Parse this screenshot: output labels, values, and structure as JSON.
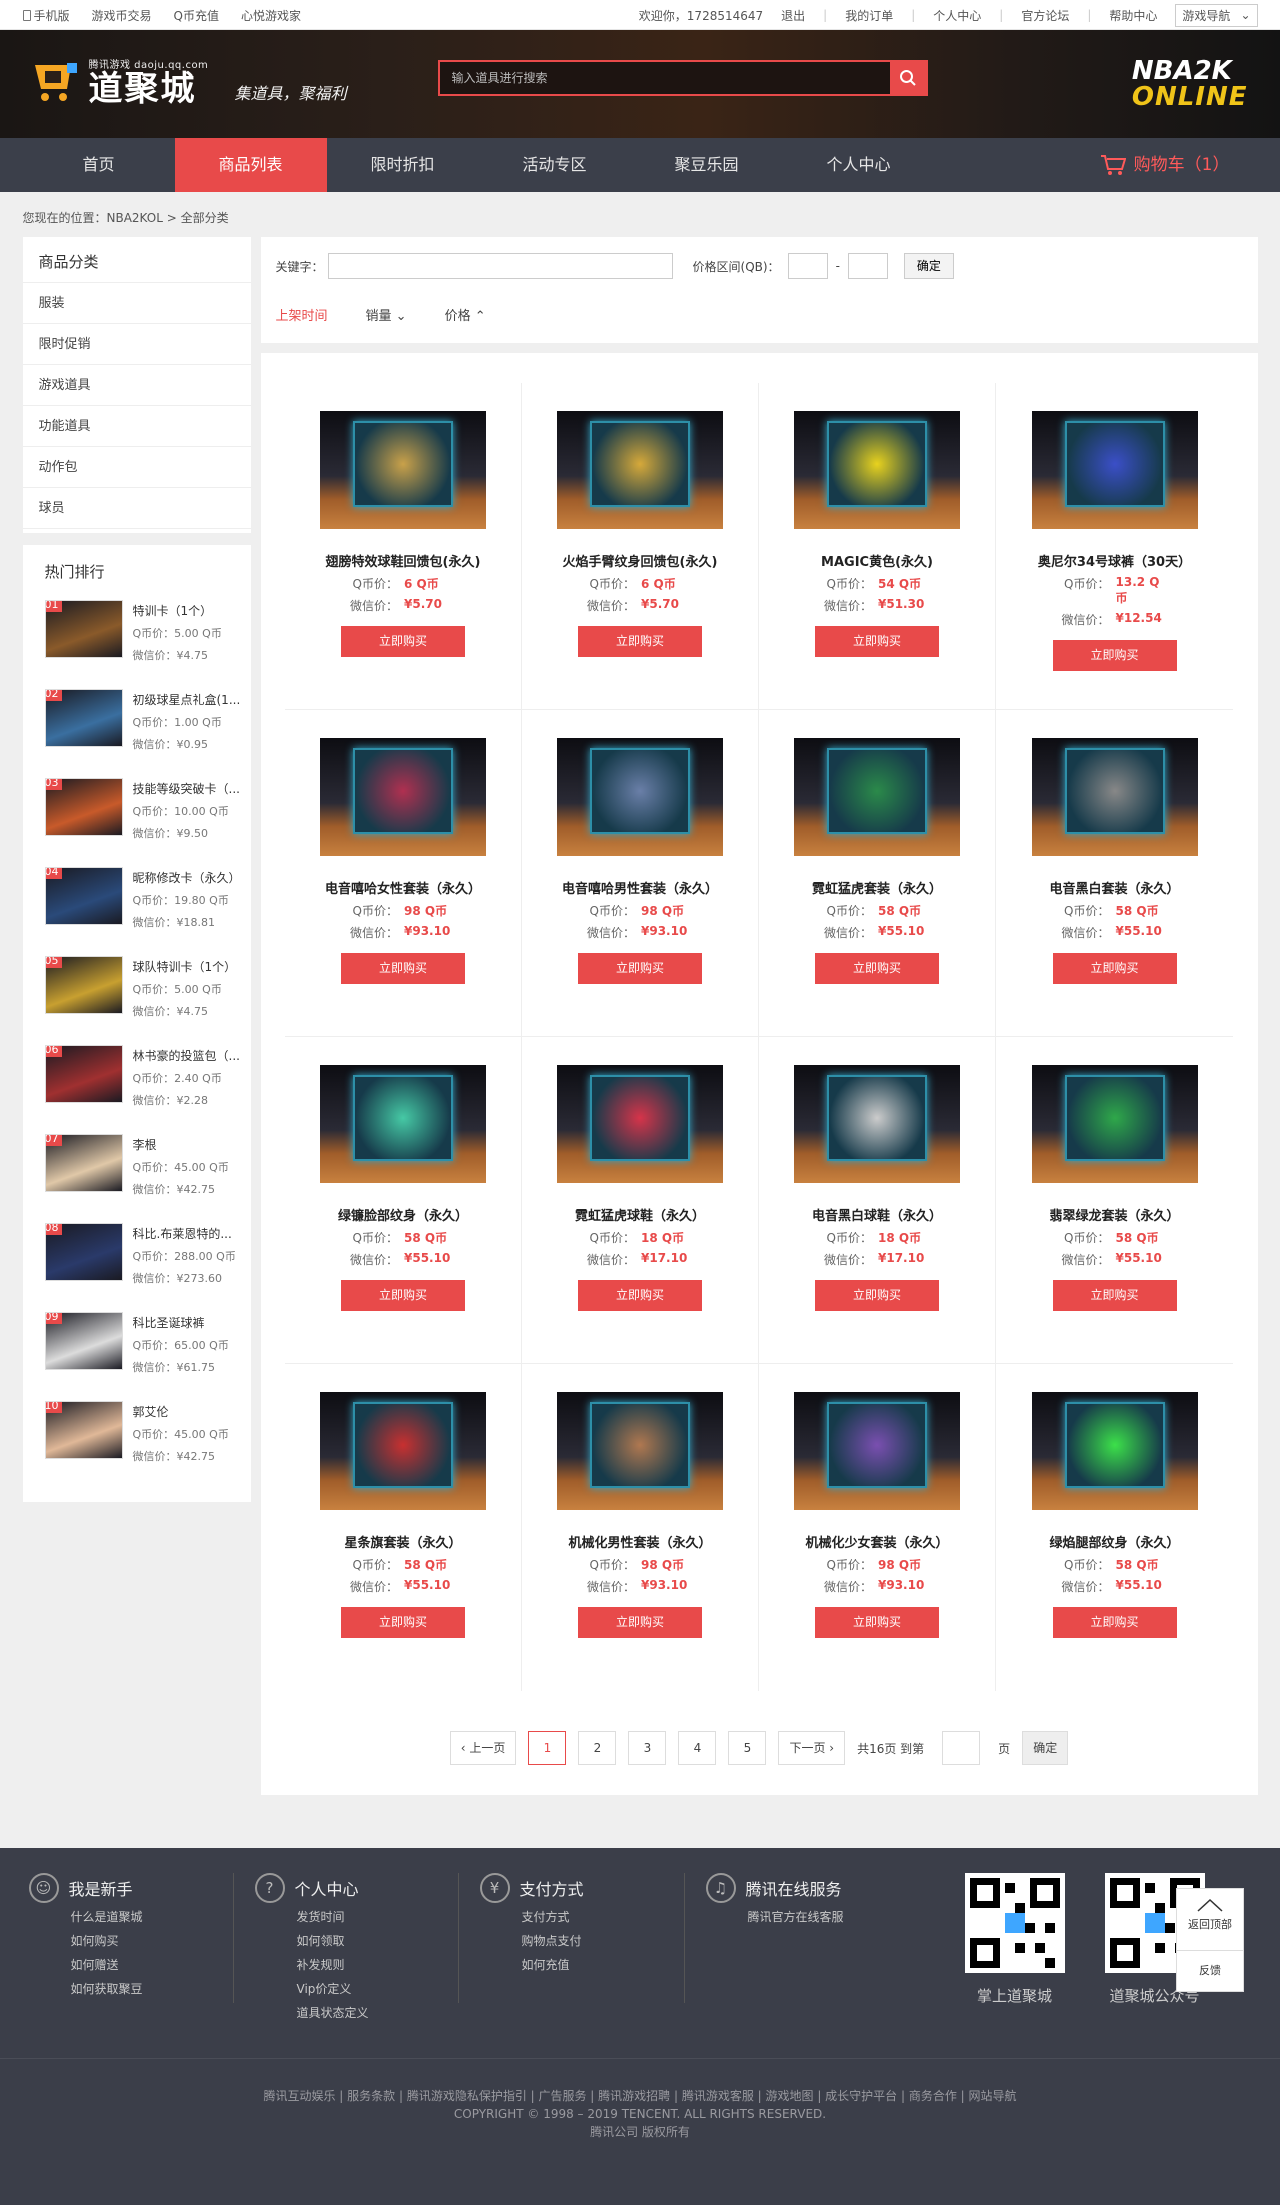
{
  "top": {
    "mobile": "手机版",
    "links": [
      "游戏币交易",
      "Q币充值",
      "心悦游戏家"
    ],
    "welcome": "欢迎你，1728514647",
    "logout": "退出",
    "orders": "我的订单",
    "personal": "个人中心",
    "forum": "官方论坛",
    "help": "帮助中心",
    "game_nav": "游戏导航"
  },
  "header": {
    "logo_sub": "腾讯游戏 daoju.qq.com",
    "logo_main": "道聚城",
    "slogan": "集道具，聚福利",
    "search_placeholder": "输入道具进行搜索",
    "game_logo_top": "NBA2K",
    "game_logo_bottom": "ONLINE"
  },
  "nav": {
    "items": [
      "首页",
      "商品列表",
      "限时折扣",
      "活动专区",
      "聚豆乐园",
      "个人中心"
    ],
    "cart": "购物车（1）"
  },
  "breadcrumb": "您现在的位置：NBA2KOL > 全部分类",
  "categories": {
    "title": "商品分类",
    "items": [
      "服装",
      "限时促销",
      "游戏道具",
      "功能道具",
      "动作包",
      "球员"
    ]
  },
  "ranking": {
    "title": "热门排行",
    "q_label": "Q币价：",
    "w_label": "微信价：",
    "items": [
      {
        "num": "01",
        "name": "特训卡（1个）",
        "q": "5.00 Q币",
        "w": "¥4.75"
      },
      {
        "num": "02",
        "name": "初级球星点礼盒(1...",
        "q": "1.00 Q币",
        "w": "¥0.95"
      },
      {
        "num": "03",
        "name": "技能等级突破卡（...",
        "q": "10.00 Q币",
        "w": "¥9.50"
      },
      {
        "num": "04",
        "name": "昵称修改卡（永久）",
        "q": "19.80 Q币",
        "w": "¥18.81"
      },
      {
        "num": "05",
        "name": "球队特训卡（1个）",
        "q": "5.00 Q币",
        "w": "¥4.75"
      },
      {
        "num": "06",
        "name": "林书豪的投篮包（...",
        "q": "2.40 Q币",
        "w": "¥2.28"
      },
      {
        "num": "07",
        "name": "李根",
        "q": "45.00 Q币",
        "w": "¥42.75"
      },
      {
        "num": "08",
        "name": "科比.布莱恩特的...",
        "q": "288.00 Q币",
        "w": "¥273.60"
      },
      {
        "num": "09",
        "name": "科比圣诞球裤",
        "q": "65.00 Q币",
        "w": "¥61.75"
      },
      {
        "num": "10",
        "name": "郭艾伦",
        "q": "45.00 Q币",
        "w": "¥42.75"
      }
    ]
  },
  "filter": {
    "keyword_label": "关键字：",
    "price_label": "价格区间(QB)：",
    "dash": "-",
    "ok": "确定",
    "sort": [
      "上架时间",
      "销量",
      "价格"
    ]
  },
  "products": {
    "q_label": "Q币价：",
    "w_label": "微信价：",
    "buy": "立即购买",
    "items": [
      {
        "name": "翅膀特效球鞋回馈包(永久)",
        "q": "6 Q币",
        "w": "¥5.70",
        "color": "#c9a14a"
      },
      {
        "name": "火焰手臂纹身回馈包(永久)",
        "q": "6 Q币",
        "w": "¥5.70",
        "color": "#d6a93a"
      },
      {
        "name": "MAGIC黄色(永久)",
        "q": "54 Q币",
        "w": "¥51.30",
        "color": "#e8d21e"
      },
      {
        "name": "奥尼尔34号球裤（30天）",
        "q": "13.2 Q币",
        "w": "¥12.54",
        "color": "#3b4fc8"
      },
      {
        "name": "电音嘻哈女性套装（永久）",
        "q": "98 Q币",
        "w": "¥93.10",
        "color": "#b03050"
      },
      {
        "name": "电音嘻哈男性套装（永久）",
        "q": "98 Q币",
        "w": "¥93.10",
        "color": "#6a7fa8"
      },
      {
        "name": "霓虹猛虎套装（永久）",
        "q": "58 Q币",
        "w": "¥55.10",
        "color": "#2b8a4a"
      },
      {
        "name": "电音黑白套装（永久）",
        "q": "58 Q币",
        "w": "¥55.10",
        "color": "#888888"
      },
      {
        "name": "绿镰脸部纹身（永久）",
        "q": "58 Q币",
        "w": "¥55.10",
        "color": "#46c9a5"
      },
      {
        "name": "霓虹猛虎球鞋（永久）",
        "q": "18 Q币",
        "w": "¥17.10",
        "color": "#d6344a"
      },
      {
        "name": "电音黑白球鞋（永久）",
        "q": "18 Q币",
        "w": "¥17.10",
        "color": "#cccccc"
      },
      {
        "name": "翡翠绿龙套装（永久）",
        "q": "58 Q币",
        "w": "¥55.10",
        "color": "#2fa84a"
      },
      {
        "name": "星条旗套装（永久）",
        "q": "58 Q币",
        "w": "¥55.10",
        "color": "#c83030"
      },
      {
        "name": "机械化男性套装（永久）",
        "q": "98 Q币",
        "w": "¥93.10",
        "color": "#b07850"
      },
      {
        "name": "机械化少女套装（永久）",
        "q": "98 Q币",
        "w": "¥93.10",
        "color": "#7a4fb0"
      },
      {
        "name": "绿焰腿部纹身（永久）",
        "q": "58 Q币",
        "w": "¥55.10",
        "color": "#3ce04a"
      }
    ]
  },
  "pager": {
    "prev": "上一页",
    "pages": [
      "1",
      "2",
      "3",
      "4",
      "5"
    ],
    "current": "1",
    "next": "下一页",
    "total": "共16页 到第",
    "unit": "页",
    "ok": "确定"
  },
  "footer": {
    "cols": [
      {
        "icon": "user-icon",
        "title": "我是新手",
        "links": [
          "什么是道聚城",
          "如何购买",
          "如何赠送",
          "如何获取聚豆"
        ]
      },
      {
        "icon": "question-icon",
        "title": "个人中心",
        "links": [
          "发货时间",
          "如何领取",
          "补发规则",
          "Vip价定义",
          "道具状态定义"
        ]
      },
      {
        "icon": "yen-icon",
        "title": "支付方式",
        "links": [
          "支付方式",
          "购物点支付",
          "如何充值"
        ]
      },
      {
        "icon": "bell-icon",
        "title": "腾讯在线服务",
        "links": [
          "腾讯官方在线客服"
        ]
      }
    ],
    "qr1": "掌上道聚城",
    "qr2": "道聚城公众号",
    "bottom_links": "腾讯互动娱乐 | 服务条款 | 腾讯游戏隐私保护指引 | 广告服务 | 腾讯游戏招聘 | 腾讯游戏客服 | 游戏地图 | 成长守护平台 | 商务合作 | 网站导航",
    "copyright": "COPYRIGHT © 1998 – 2019 TENCENT. ALL RIGHTS RESERVED.",
    "company": "腾讯公司 版权所有"
  },
  "float": {
    "top": "返回顶部",
    "feedback": "反馈"
  }
}
